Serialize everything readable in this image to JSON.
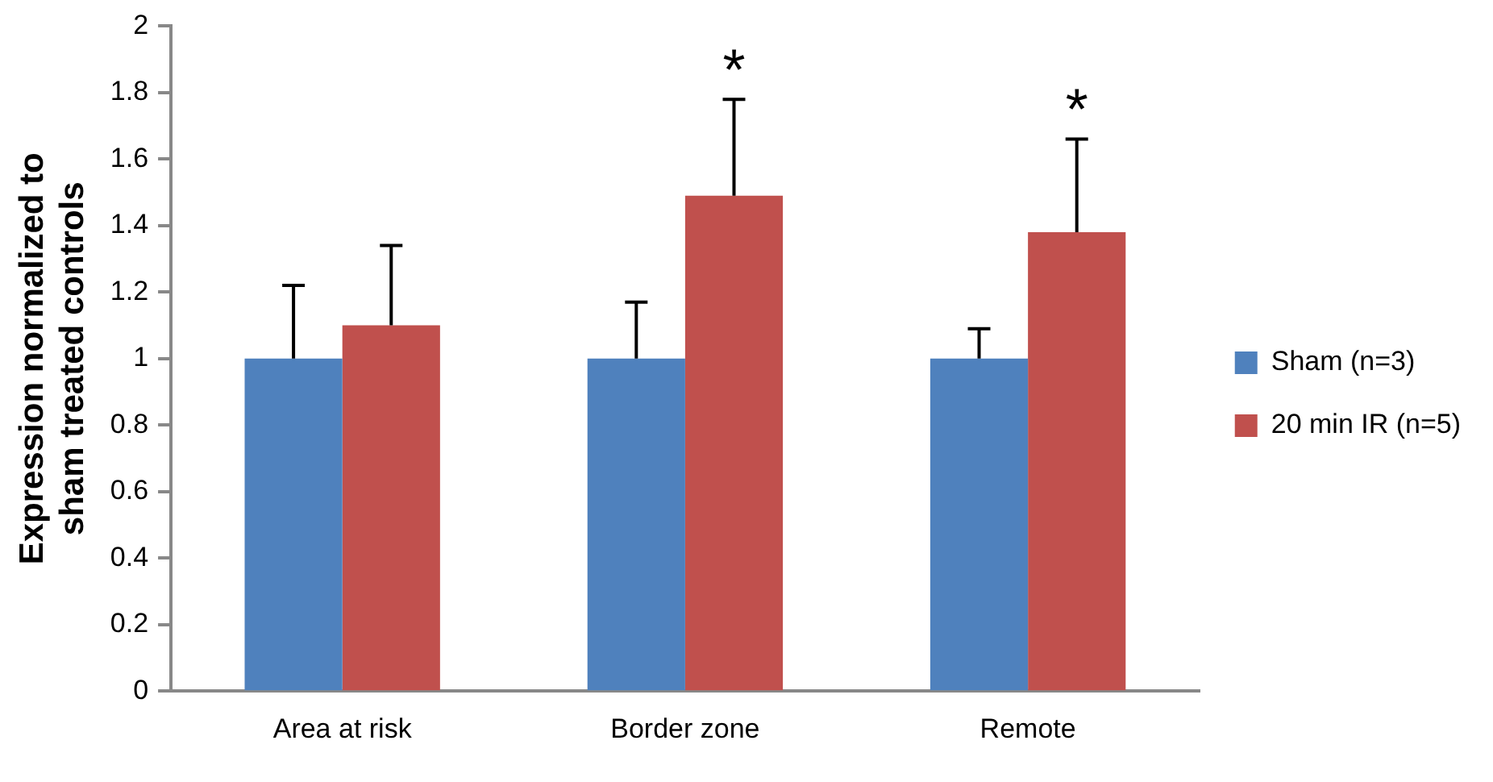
{
  "chart_data": {
    "type": "bar",
    "ylabel": "Expression normalized to\nsham treated controls",
    "categories": [
      "Area at risk",
      "Border zone",
      "Remote"
    ],
    "series": [
      {
        "name": "Sham (n=3)",
        "color": "#4f81bd",
        "values": [
          1,
          1,
          1
        ],
        "errors": [
          [
            1,
            1.22
          ],
          [
            1,
            1.17
          ],
          [
            1,
            1.09
          ]
        ]
      },
      {
        "name": "20 min IR (n=5)",
        "color": "#c0504d",
        "values": [
          1.1,
          1.49,
          1.38
        ],
        "errors": [
          [
            1.1,
            1.34
          ],
          [
            1.49,
            1.78
          ],
          [
            1.38,
            1.66
          ]
        ]
      }
    ],
    "ylim": [
      0,
      2
    ],
    "yticks": [
      0,
      0.2,
      0.4,
      0.6,
      0.8,
      1,
      1.2,
      1.4,
      1.6,
      1.8,
      2
    ],
    "grid": false,
    "legend": "right",
    "annotations": [
      {
        "text": "*",
        "x": "Border zone",
        "y": 1.49
      },
      {
        "text": "*",
        "x": "Remote",
        "y": 1.38
      }
    ]
  }
}
